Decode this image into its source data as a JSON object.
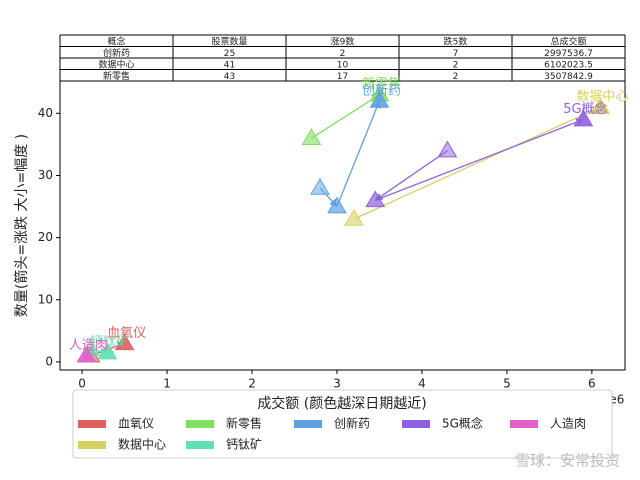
{
  "table": {
    "header": [
      "概念",
      "股票数量",
      "涨9数",
      "跌5数",
      "总成交额"
    ],
    "rows": [
      [
        "创新药",
        "25",
        "2",
        "7",
        "2997536.7"
      ],
      [
        "数据中心",
        "41",
        "10",
        "2",
        "6102023.5"
      ],
      [
        "新零售",
        "43",
        "17",
        "2",
        "3507842.9"
      ]
    ]
  },
  "chart_data": {
    "type": "scatter",
    "xlabel": "成交额 (颜色越深日期越近)",
    "ylabel": "数量(箭头=涨跌 大小=幅度 )",
    "x_offset_label": "1e6",
    "xlim": [
      -0.26,
      6.39
    ],
    "ylim": [
      -1.3,
      45.2
    ],
    "xticks": [
      0,
      1,
      2,
      3,
      4,
      5,
      6
    ],
    "yticks": [
      0,
      10,
      20,
      30,
      40
    ],
    "series": [
      {
        "name": "血氧仪",
        "color": "#e06060",
        "x": [
          0.1,
          0.5
        ],
        "values": [
          1,
          3
        ]
      },
      {
        "name": "数据中心",
        "color": "#d8d060",
        "x": [
          3.2,
          6.1
        ],
        "values": [
          23,
          41
        ]
      },
      {
        "name": "新零售",
        "color": "#80e060",
        "x": [
          2.7,
          3.5
        ],
        "values": [
          36,
          43
        ]
      },
      {
        "name": "钙钛矿",
        "color": "#60e0b0",
        "x": [
          0.1,
          0.3
        ],
        "values": [
          2,
          1.5
        ]
      },
      {
        "name": "创新药",
        "color": "#60a0e0",
        "x": [
          2.8,
          3.0,
          3.5
        ],
        "values": [
          28,
          25,
          42
        ]
      },
      {
        "name": "5G概念",
        "color": "#9060e0",
        "x": [
          4.3,
          3.45,
          5.9
        ],
        "values": [
          34,
          26,
          39
        ]
      },
      {
        "name": "人造肉",
        "color": "#e060c8",
        "x": [
          0.05
        ],
        "values": [
          1
        ]
      }
    ]
  },
  "watermark": "雪球：安常投资"
}
